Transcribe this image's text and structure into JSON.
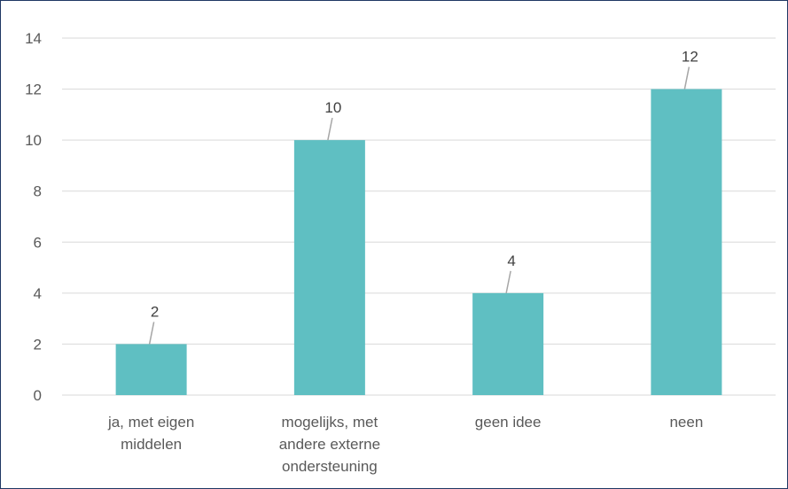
{
  "chart_data": {
    "type": "bar",
    "title": "",
    "xlabel": "",
    "ylabel": "",
    "categories": [
      [
        "ja, met eigen",
        "middelen"
      ],
      [
        "mogelijks, met",
        "andere externe",
        "ondersteuning"
      ],
      [
        "geen idee"
      ],
      [
        "neen"
      ]
    ],
    "values": [
      2,
      10,
      4,
      12
    ],
    "ylim": [
      0,
      14
    ],
    "yticks": [
      0,
      2,
      4,
      6,
      8,
      10,
      12,
      14
    ],
    "grid": true,
    "legend": "none",
    "data_labels": true,
    "colors": {
      "bar": "#5fbfc2",
      "grid": "#d9d9d9",
      "text": "#595959",
      "leader": "#a6a6a6",
      "border": "#1f3864"
    }
  }
}
